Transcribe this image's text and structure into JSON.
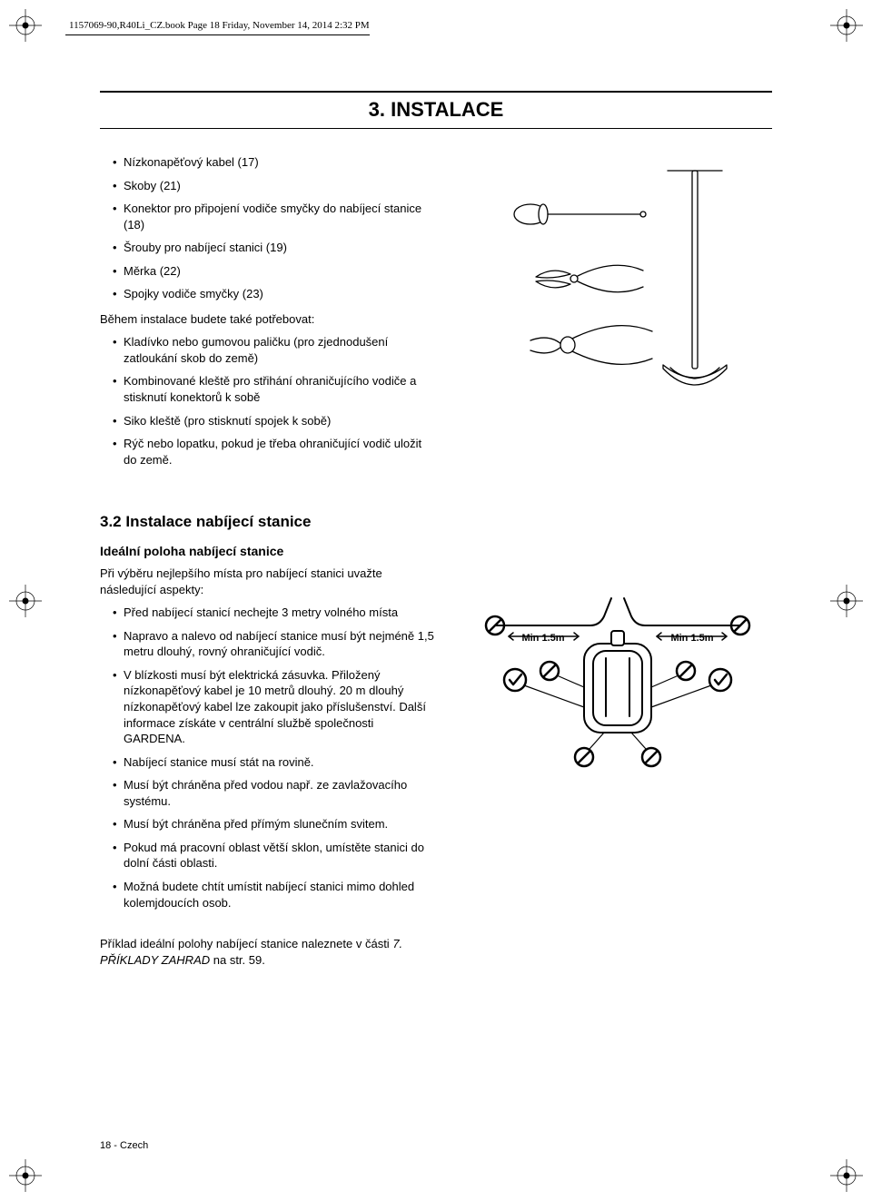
{
  "book_info": "1157069-90,R40Li_CZ.book  Page 18  Friday, November 14, 2014  2:32 PM",
  "title": "3. INSTALACE",
  "list_a": [
    "Nízkonapěťový kabel (17)",
    "Skoby (21)",
    "Konektor pro připojení vodiče smyčky do nabíjecí stanice (18)",
    "Šrouby pro nabíjecí stanici (19)",
    "Měrka (22)",
    "Spojky vodiče smyčky (23)"
  ],
  "para_a": "Během instalace budete také potřebovat:",
  "list_b": [
    "Kladívko nebo gumovou paličku (pro zjednodušení zatloukání skob do země)",
    "Kombinované kleště pro střihání ohraničujícího vodiče a stisknutí konektorů k sobě",
    "Siko kleště (pro stisknutí spojek k sobě)",
    "Rýč nebo lopatku, pokud je třeba ohraničující vodič uložit do země."
  ],
  "section_title": "3.2 Instalace nabíjecí stanice",
  "subhead": "Ideální poloha nabíjecí stanice",
  "para_b": "Při výběru nejlepšího místa pro nabíjecí stanici uvažte následující aspekty:",
  "list_c": [
    "Před nabíjecí stanicí nechejte 3 metry volného místa",
    "Napravo a nalevo od nabíjecí stanice musí být nejméně 1,5 metru dlouhý, rovný ohraničující vodič.",
    "V blízkosti musí být elektrická zásuvka. Přiložený nízkonapěťový kabel je 10 metrů dlouhý. 20 m dlouhý nízkonapěťový kabel lze zakoupit jako příslušenství. Další informace získáte v centrální službě společnosti GARDENA.",
    "Nabíjecí stanice musí stát na rovině.",
    "Musí být chráněna před vodou např. ze zavlažovacího systému.",
    "Musí být chráněna před přímým slunečním svitem.",
    "Pokud má pracovní oblast větší sklon, umístěte stanici do dolní části oblasti.",
    "Možná budete chtít umístit nabíjecí stanici mimo dohled kolemjdoucích osob."
  ],
  "para_c_pre": "Příklad ideální polohy nabíjecí stanice naleznete v části ",
  "para_c_italic": "7. PŘÍKLADY ZAHRAD",
  "para_c_post": " na str. 59.",
  "page_num": "18 - Czech",
  "diag2": {
    "label_left": "Min 1.5m",
    "label_right": "Min 1.5m"
  }
}
